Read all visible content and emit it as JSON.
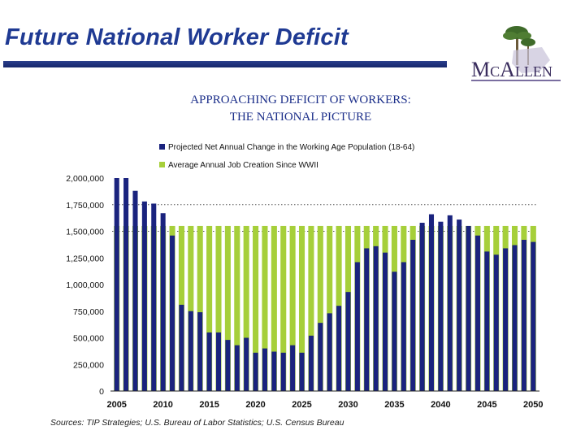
{
  "slide": {
    "title": "Future National Worker Deficit",
    "subtitle_line1": "APPROACHING DEFICIT OF WORKERS:",
    "subtitle_line2": "THE NATIONAL PICTURE",
    "logo_text": "McAllen",
    "source": "Sources: TIP Strategies; U.S. Bureau of Labor Statistics; U.S. Census Bureau"
  },
  "colors": {
    "title": "#1f3a93",
    "navy_series": "#1a237e",
    "green_series": "#a6cf3a"
  },
  "chart_data": {
    "type": "bar",
    "title": "",
    "xlabel": "",
    "ylabel": "",
    "ylim": [
      0,
      2000000
    ],
    "yticks": [
      0,
      250000,
      500000,
      750000,
      1000000,
      1250000,
      1500000,
      1750000,
      2000000
    ],
    "ytick_labels": [
      "0",
      "250,000",
      "500,000",
      "750,000",
      "1,000,000",
      "1,250,000",
      "1,500,000",
      "1,750,000",
      "2,000,000"
    ],
    "xticks": [
      "2005",
      "2010",
      "2015",
      "2020",
      "2025",
      "2030",
      "2035",
      "2040",
      "2045",
      "2050"
    ],
    "legend_position": "top",
    "categories": [
      "2005",
      "2006",
      "2007",
      "2008",
      "2009",
      "2010",
      "2011",
      "2012",
      "2013",
      "2014",
      "2015",
      "2016",
      "2017",
      "2018",
      "2019",
      "2020",
      "2021",
      "2022",
      "2023",
      "2024",
      "2025",
      "2026",
      "2027",
      "2028",
      "2029",
      "2030",
      "2031",
      "2032",
      "2033",
      "2034",
      "2035",
      "2036",
      "2037",
      "2038",
      "2039",
      "2040",
      "2041",
      "2042",
      "2043",
      "2044",
      "2045",
      "2046",
      "2047",
      "2048",
      "2049",
      "2050"
    ],
    "series": [
      {
        "name": "Projected Net Annual Change in the Working Age Population (18-64)",
        "color": "#1a237e",
        "values": [
          2000000,
          2000000,
          1880000,
          1780000,
          1760000,
          1670000,
          1460000,
          810000,
          750000,
          740000,
          550000,
          550000,
          480000,
          430000,
          500000,
          360000,
          400000,
          370000,
          360000,
          430000,
          360000,
          520000,
          640000,
          730000,
          800000,
          930000,
          1210000,
          1340000,
          1360000,
          1300000,
          1120000,
          1210000,
          1420000,
          1580000,
          1660000,
          1590000,
          1650000,
          1610000,
          1550000,
          1460000,
          1310000,
          1280000,
          1340000,
          1370000,
          1420000,
          1400000
        ]
      },
      {
        "name": "Average Annual Job Creation Since WWII",
        "color": "#a6cf3a",
        "values": [
          1550000,
          1550000,
          1550000,
          1550000,
          1550000,
          1550000,
          1550000,
          1550000,
          1550000,
          1550000,
          1550000,
          1550000,
          1550000,
          1550000,
          1550000,
          1550000,
          1550000,
          1550000,
          1550000,
          1550000,
          1550000,
          1550000,
          1550000,
          1550000,
          1550000,
          1550000,
          1550000,
          1550000,
          1550000,
          1550000,
          1550000,
          1550000,
          1550000,
          1550000,
          1550000,
          1550000,
          1550000,
          1550000,
          1550000,
          1550000,
          1550000,
          1550000,
          1550000,
          1550000,
          1550000,
          1550000
        ]
      }
    ]
  }
}
